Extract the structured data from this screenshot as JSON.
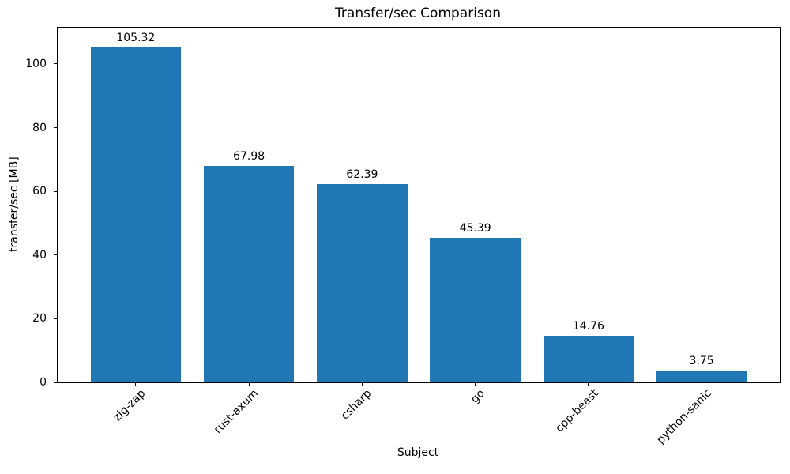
{
  "chart_data": {
    "type": "bar",
    "title": "Transfer/sec Comparison",
    "xlabel": "Subject",
    "ylabel": "transfer/sec [MB]",
    "categories": [
      "zig-zap",
      "rust-axum",
      "csharp",
      "go",
      "cpp-beast",
      "python-sanic"
    ],
    "values": [
      105.32,
      67.98,
      62.39,
      45.39,
      14.76,
      3.75
    ],
    "value_labels": [
      "105.32",
      "67.98",
      "62.39",
      "45.39",
      "14.76",
      "3.75"
    ],
    "yticks": [
      0,
      20,
      40,
      60,
      80,
      100
    ],
    "ytick_labels": [
      "0",
      "20",
      "40",
      "60",
      "80",
      "100"
    ],
    "ylim": [
      0,
      111.4
    ],
    "xlim": [
      -0.69,
      5.69
    ],
    "bar_width": 0.8,
    "xtick_rotation_deg": 45,
    "grid": false,
    "legend": false,
    "bar_color": "#1f77b4",
    "spine_color": "#000000",
    "text_color": "#000000",
    "background_color": "#ffffff"
  }
}
